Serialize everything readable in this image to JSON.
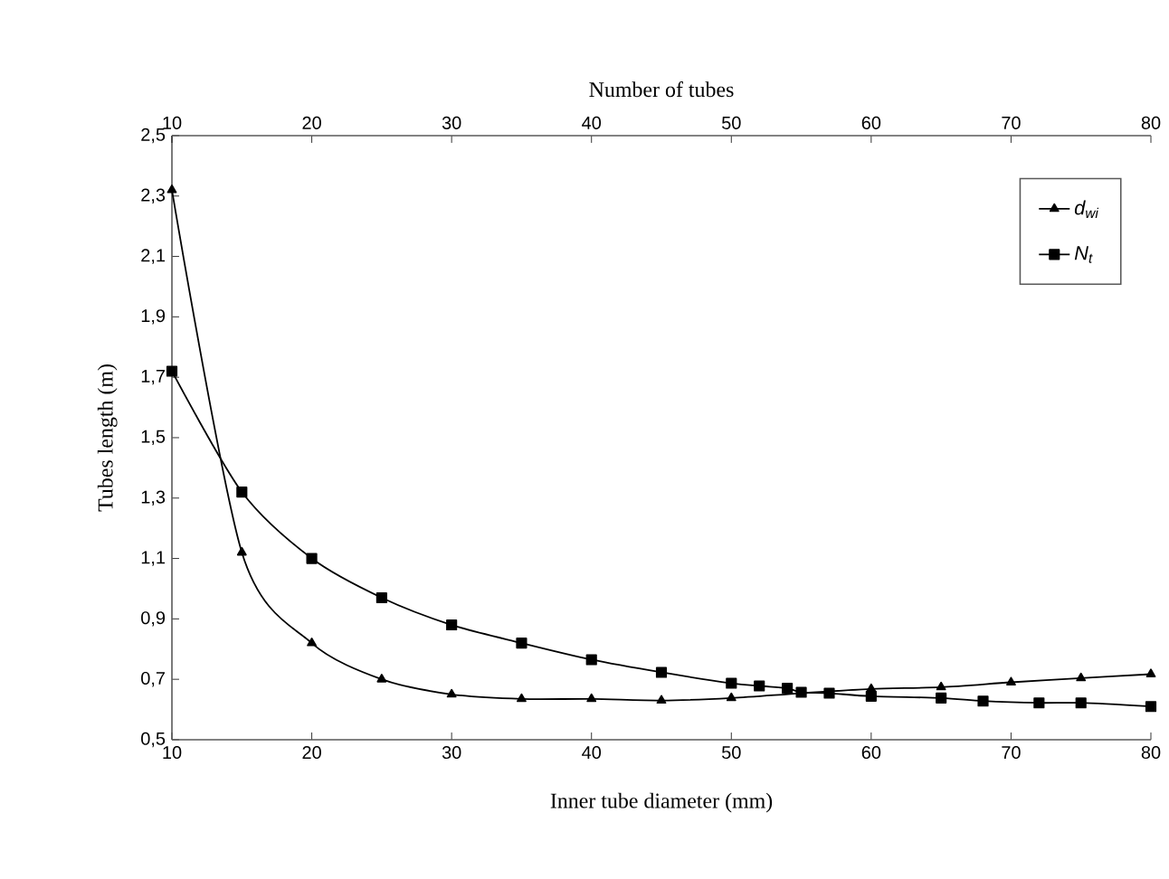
{
  "chart_data": {
    "type": "line",
    "xlabel": "Inner tube diameter (mm)",
    "x2label": "Number of tubes",
    "ylabel": "Tubes length (m)",
    "xlim": [
      10,
      80
    ],
    "xticks": [
      10,
      20,
      30,
      40,
      50,
      60,
      70,
      80
    ],
    "x2lim": [
      10,
      80
    ],
    "x2ticks": [
      10,
      20,
      30,
      40,
      50,
      60,
      70,
      80
    ],
    "ylim": [
      0.5,
      2.5
    ],
    "yticks": [
      {
        "value": 0.5,
        "label": "0,5"
      },
      {
        "value": 0.7,
        "label": "0,7"
      },
      {
        "value": 0.9,
        "label": "0,9"
      },
      {
        "value": 1.1,
        "label": "1,1"
      },
      {
        "value": 1.3,
        "label": "1,3"
      },
      {
        "value": 1.5,
        "label": "1,5"
      },
      {
        "value": 1.7,
        "label": "1,7"
      },
      {
        "value": 1.9,
        "label": "1,9"
      },
      {
        "value": 2.1,
        "label": "2,1"
      },
      {
        "value": 2.3,
        "label": "2,3"
      },
      {
        "value": 2.5,
        "label": "2,5"
      }
    ],
    "legend": "top right",
    "grid": false,
    "line_style": "solid",
    "series": [
      {
        "name": "d$_{wi}$",
        "color": "#000000",
        "marker": "triangle",
        "x": [
          10,
          15,
          20,
          25,
          30,
          35,
          40,
          45,
          50,
          55,
          60,
          65,
          70,
          75,
          80
        ],
        "values": [
          2.32,
          1.12,
          0.82,
          0.7,
          0.65,
          0.635,
          0.635,
          0.63,
          0.638,
          0.654,
          0.668,
          0.674,
          0.69,
          0.704,
          0.717
        ]
      },
      {
        "name": "N$_{t}$",
        "color": "#000000",
        "marker": "square",
        "axis": "x2",
        "x": [
          10,
          15,
          20,
          25,
          30,
          35,
          40,
          45,
          50,
          52,
          54,
          55,
          57,
          60,
          65,
          68,
          72,
          75,
          80
        ],
        "values": [
          1.72,
          1.32,
          1.1,
          0.97,
          0.88,
          0.82,
          0.765,
          0.723,
          0.687,
          0.678,
          0.67,
          0.657,
          0.654,
          0.644,
          0.638,
          0.628,
          0.622,
          0.622,
          0.61
        ]
      }
    ]
  }
}
